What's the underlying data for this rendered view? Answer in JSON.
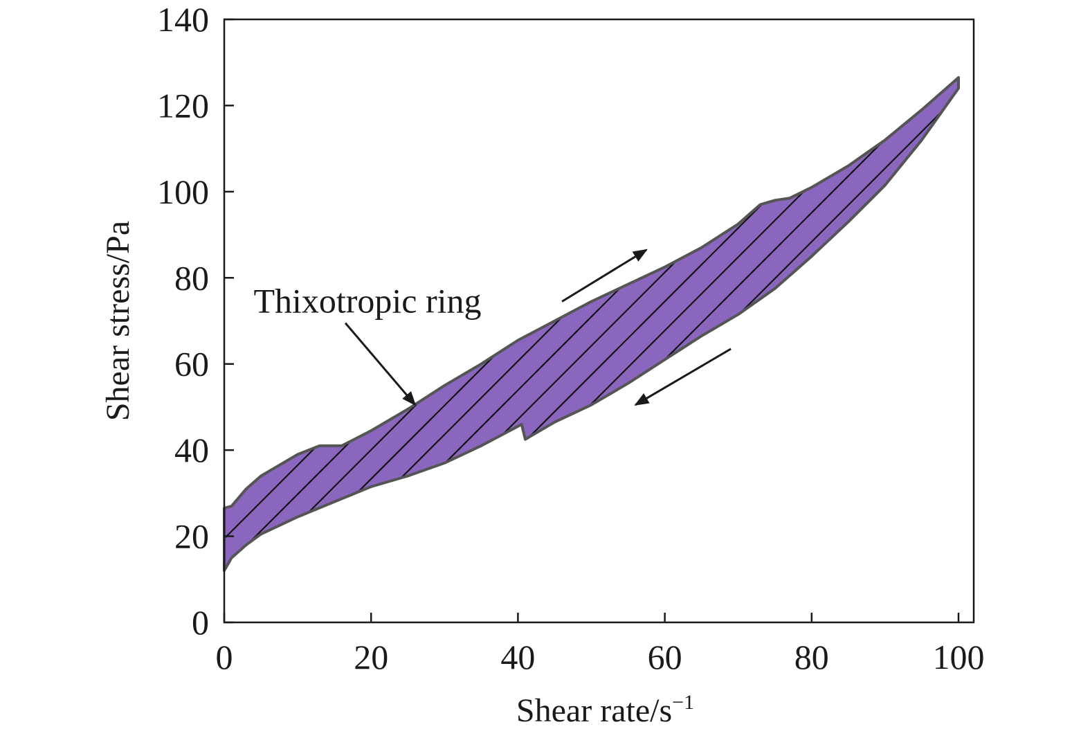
{
  "chart_data": {
    "type": "area",
    "title": "",
    "xlabel": "Shear rate/s",
    "xlabel_sup": "−1",
    "ylabel": "Shear stress/Pa",
    "xlim": [
      0,
      100
    ],
    "ylim": [
      0,
      140
    ],
    "xticks": [
      0,
      20,
      40,
      60,
      80,
      100
    ],
    "yticks": [
      0,
      20,
      40,
      60,
      80,
      100,
      120,
      140
    ],
    "grid": false,
    "fill_color": "#8b66bf",
    "hatch_color": "#111111",
    "outline_color": "#555555",
    "series": [
      {
        "name": "",
        "x": [
          0,
          1,
          3,
          5,
          8,
          10,
          13,
          16,
          20,
          25,
          30,
          35,
          40,
          45,
          50,
          55,
          60,
          65,
          70,
          73,
          75,
          77,
          80,
          85,
          90,
          95,
          100
        ],
        "y": [
          26.5,
          27,
          31,
          34,
          37,
          39,
          41,
          41,
          44.5,
          49.5,
          55,
          60,
          65.5,
          70,
          74.5,
          78.5,
          82.5,
          87,
          92.5,
          97,
          98,
          98.5,
          101,
          106,
          112,
          119,
          126.5
        ]
      },
      {
        "name": "",
        "x": [
          0,
          1,
          3,
          5,
          10,
          15,
          20,
          25,
          30,
          35,
          40,
          40.5,
          41,
          45,
          50,
          55,
          60,
          65,
          70,
          75,
          80,
          85,
          90,
          95,
          100
        ],
        "y": [
          12,
          15,
          18,
          20.5,
          24.5,
          28,
          31.5,
          34,
          37,
          41,
          45.5,
          46,
          42.5,
          46.5,
          50.5,
          55.5,
          61,
          66.5,
          71.5,
          77.5,
          85,
          93,
          101.5,
          112,
          124
        ]
      }
    ],
    "annotations": [
      {
        "text": "Thixotropic ring",
        "x": 4,
        "y": 74.5,
        "arrow_from": [
          16.5,
          69.5
        ],
        "arrow_to": [
          26,
          50.5
        ]
      },
      {
        "text": "",
        "arrow_from": [
          46,
          74.5
        ],
        "arrow_to": [
          57.5,
          86.5
        ]
      },
      {
        "text": "",
        "arrow_from": [
          69,
          63.5
        ],
        "arrow_to": [
          56,
          50.5
        ]
      }
    ]
  }
}
